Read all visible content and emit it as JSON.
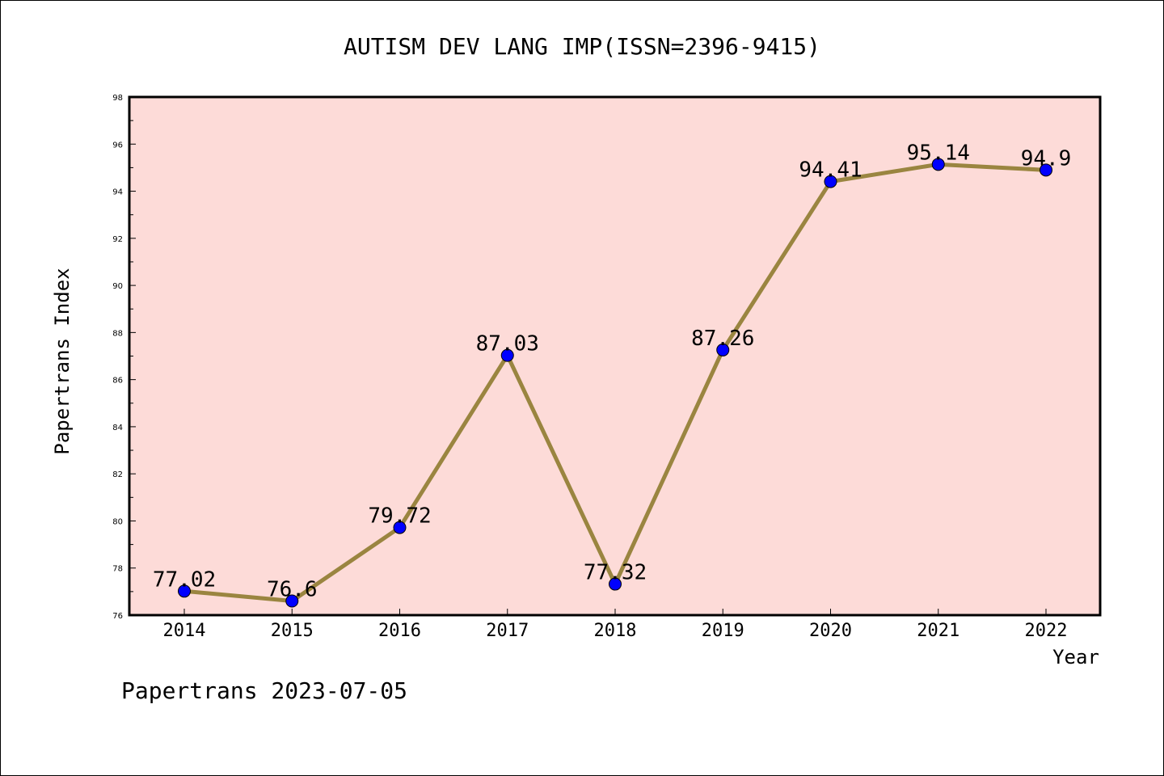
{
  "chart_data": {
    "type": "line",
    "title": "AUTISM DEV LANG IMP(ISSN=2396-9415)",
    "xlabel": "Year",
    "ylabel": "Papertrans Index",
    "categories": [
      "2014",
      "2015",
      "2016",
      "2017",
      "2018",
      "2019",
      "2020",
      "2021",
      "2022"
    ],
    "values": [
      77.02,
      76.6,
      79.72,
      87.03,
      77.32,
      87.26,
      94.41,
      95.14,
      94.9
    ],
    "value_labels": [
      "77.02",
      "76.6",
      "79.72",
      "87.03",
      "77.32",
      "87.26",
      "94.41",
      "95.14",
      "94.9"
    ],
    "ylim": [
      76,
      98
    ],
    "yticks": [
      "76",
      "78",
      "80",
      "82",
      "84",
      "86",
      "88",
      "90",
      "92",
      "94",
      "96",
      "98"
    ],
    "grid": false,
    "colors": {
      "plot_background": "#fddbd8",
      "line": "#9a8540",
      "marker": "#0000ff"
    }
  },
  "footer": {
    "text": "Papertrans 2023-07-05"
  }
}
